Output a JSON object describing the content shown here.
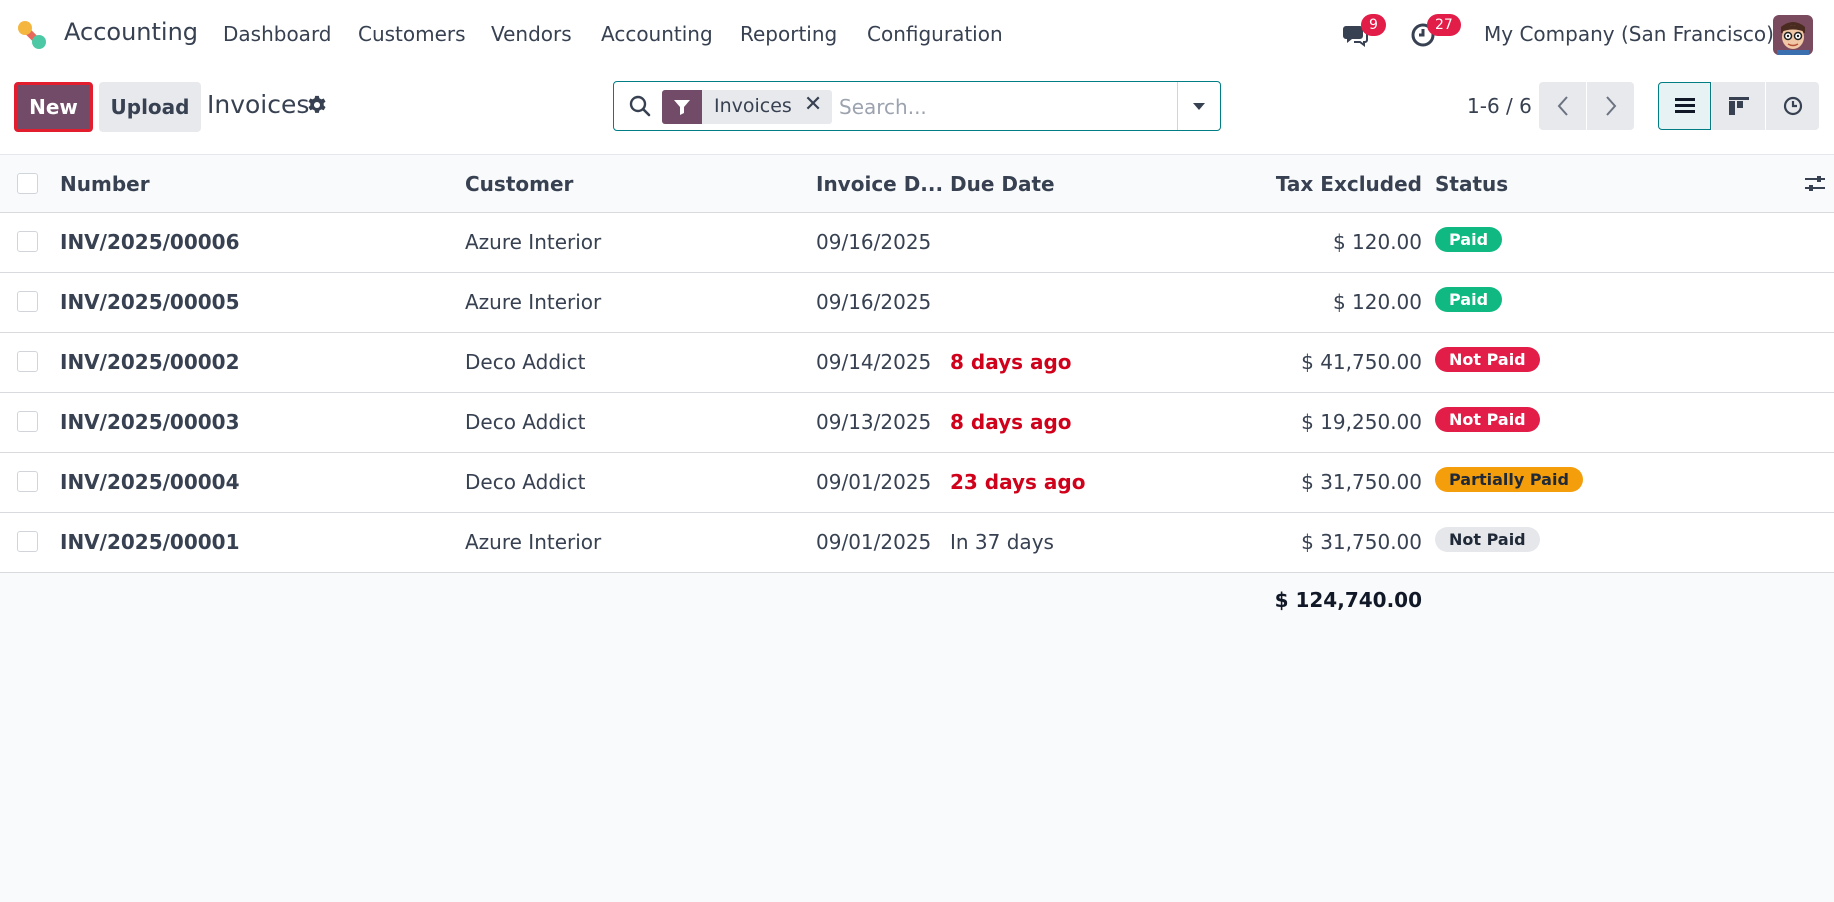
{
  "app": {
    "name": "Accounting"
  },
  "menu": [
    "Dashboard",
    "Customers",
    "Vendors",
    "Accounting",
    "Reporting",
    "Configuration"
  ],
  "systray": {
    "messages_count": "9",
    "activities_count": "27",
    "company": "My Company (San Francisco)"
  },
  "control": {
    "new_label": "New",
    "upload_label": "Upload",
    "title": "Invoices",
    "facet_label": "Invoices",
    "facet_close": "✕",
    "search_placeholder": "Search...",
    "pager": "1-6 / 6"
  },
  "table": {
    "headers": {
      "number": "Number",
      "customer": "Customer",
      "invoice_date": "Invoice D...",
      "due_date": "Due Date",
      "tax_excluded": "Tax Excluded",
      "status": "Status"
    },
    "rows": [
      {
        "number": "INV/2025/00006",
        "customer": "Azure Interior",
        "invoice_date": "09/16/2025",
        "due_date": "",
        "tax_excluded": "$ 120.00",
        "status": "Paid"
      },
      {
        "number": "INV/2025/00005",
        "customer": "Azure Interior",
        "invoice_date": "09/16/2025",
        "due_date": "",
        "tax_excluded": "$ 120.00",
        "status": "Paid"
      },
      {
        "number": "INV/2025/00002",
        "customer": "Deco Addict",
        "invoice_date": "09/14/2025",
        "due_date": "8 days ago",
        "tax_excluded": "$ 41,750.00",
        "status": "Not Paid"
      },
      {
        "number": "INV/2025/00003",
        "customer": "Deco Addict",
        "invoice_date": "09/13/2025",
        "due_date": "8 days ago",
        "tax_excluded": "$ 19,250.00",
        "status": "Not Paid"
      },
      {
        "number": "INV/2025/00004",
        "customer": "Deco Addict",
        "invoice_date": "09/01/2025",
        "due_date": "23 days ago",
        "tax_excluded": "$ 31,750.00",
        "status": "Partially Paid"
      },
      {
        "number": "INV/2025/00001",
        "customer": "Azure Interior",
        "invoice_date": "09/01/2025",
        "due_date": "In 37 days",
        "tax_excluded": "$ 31,750.00",
        "status": "Not Paid"
      }
    ],
    "total": "$ 124,740.00"
  },
  "colors": {
    "brand": "#714b67",
    "paid": "#10b981",
    "not_paid_overdue": "#e11d48",
    "partially_paid": "#f59e0b",
    "not_paid_neutral": "#e5e7eb",
    "overdue_text": "#d0021b"
  },
  "icons": [
    "app-logo-icon",
    "chat-icon",
    "clock-icon",
    "gear-icon",
    "search-icon",
    "filter-icon",
    "caret-down-icon",
    "chevron-left-icon",
    "chevron-right-icon",
    "list-view-icon",
    "kanban-view-icon",
    "activity-view-icon",
    "optional-columns-icon"
  ]
}
